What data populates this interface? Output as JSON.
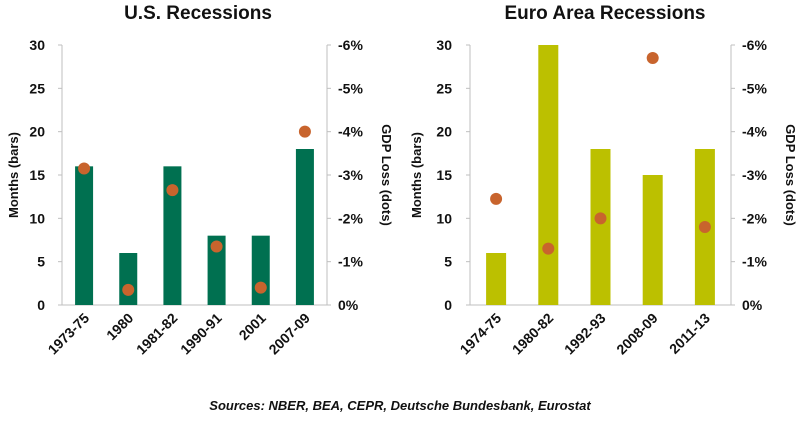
{
  "chart_data": [
    {
      "type": "bar",
      "title": "U.S. Recessions",
      "categories": [
        "1973-75",
        "1980",
        "1981-82",
        "1990-91",
        "2001",
        "2007-09"
      ],
      "series": [
        {
          "name": "Months (bars)",
          "type": "bar",
          "axis": "left",
          "values": [
            16,
            6,
            16,
            8,
            8,
            18
          ]
        },
        {
          "name": "GDP Loss (dots)",
          "type": "scatter",
          "axis": "right",
          "values": [
            -3.15,
            -0.35,
            -2.65,
            -1.35,
            -0.4,
            -4.0
          ]
        }
      ],
      "ylabel": "Months (bars)",
      "y2label": "GDP Loss (dots)",
      "ylim": [
        0,
        30
      ],
      "y2lim": [
        0,
        -6
      ],
      "yticks": [
        "0",
        "5",
        "10",
        "15",
        "20",
        "25",
        "30"
      ],
      "y2ticks": [
        "0%",
        "-1%",
        "-2%",
        "-3%",
        "-4%",
        "-5%",
        "-6%"
      ],
      "bar_color": "#007050",
      "dot_color": "#c8642d"
    },
    {
      "type": "bar",
      "title": "Euro Area Recessions",
      "categories": [
        "1974-75",
        "1980-82",
        "1992-93",
        "2008-09",
        "2011-13"
      ],
      "series": [
        {
          "name": "Months (bars)",
          "type": "bar",
          "axis": "left",
          "values": [
            6,
            30,
            18,
            15,
            18
          ]
        },
        {
          "name": "GDP Loss (dots)",
          "type": "scatter",
          "axis": "right",
          "values": [
            -2.45,
            -1.3,
            -2.0,
            -5.7,
            -1.8
          ]
        }
      ],
      "ylabel": "Months (bars)",
      "y2label": "GDP Loss (dots)",
      "ylim": [
        0,
        30
      ],
      "y2lim": [
        0,
        -6
      ],
      "yticks": [
        "0",
        "5",
        "10",
        "15",
        "20",
        "25",
        "30"
      ],
      "y2ticks": [
        "0%",
        "-1%",
        "-2%",
        "-3%",
        "-4%",
        "-5%",
        "-6%"
      ],
      "bar_color": "#bcc000",
      "dot_color": "#c8642d"
    }
  ],
  "source": "Sources: NBER, BEA, CEPR, Deutsche Bundesbank, Eurostat"
}
